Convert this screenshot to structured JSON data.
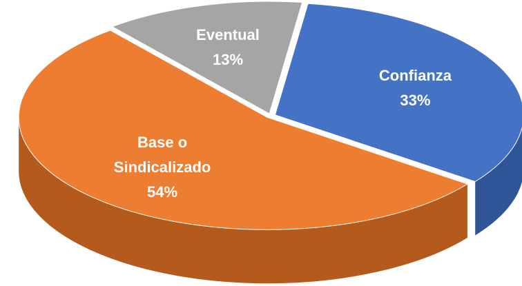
{
  "chart_data": {
    "type": "pie3d",
    "categories": [
      "Confianza",
      "Base o Sindicalizado",
      "Eventual"
    ],
    "values": [
      33,
      54,
      13
    ],
    "value_labels": [
      "33%",
      "54%",
      "13%"
    ],
    "colors": [
      "#4472c4",
      "#ed7d31",
      "#a5a5a5"
    ],
    "side_colors": [
      "#2f5597",
      "#b45a1c",
      "#7f7f7f"
    ]
  }
}
